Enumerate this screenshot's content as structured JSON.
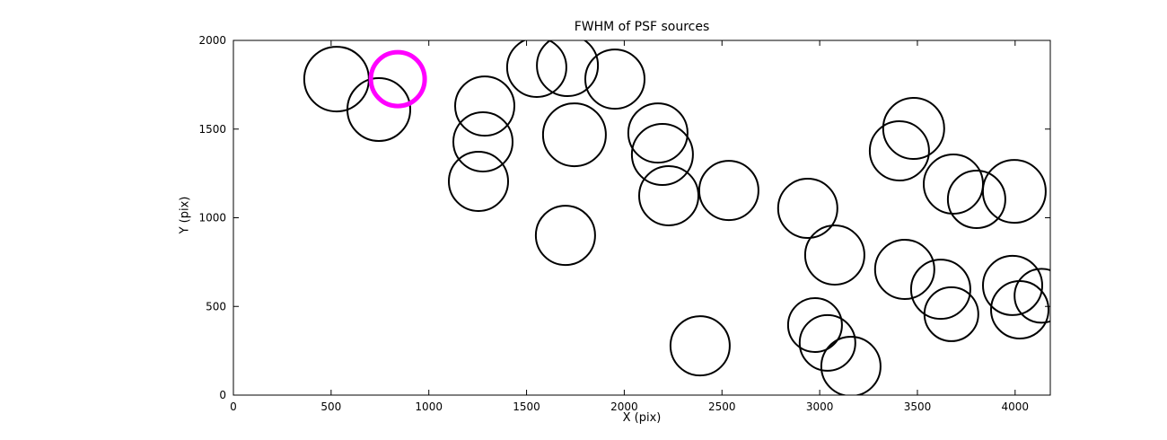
{
  "figure": {
    "title": "FWHM of PSF sources",
    "xlabel": "X (pix)",
    "ylabel": "Y (pix)"
  },
  "chart_data": {
    "type": "scatter",
    "title": "FWHM of PSF sources",
    "xlabel": "X (pix)",
    "ylabel": "Y (pix)",
    "xlim": [
      0,
      4180
    ],
    "ylim": [
      0,
      2000
    ],
    "x_ticks": [
      0,
      500,
      1000,
      1500,
      2000,
      2500,
      3000,
      3500,
      4000
    ],
    "y_ticks": [
      0,
      500,
      1000,
      1500,
      2000
    ],
    "grid": false,
    "legend": "none",
    "marker": "open-circle",
    "colors": {
      "default": "#000000",
      "highlight": "#ff00ff"
    },
    "note": "Each point is a PSF source; r is the drawn marker radius in screen px; one highlighted source in magenta",
    "points": [
      {
        "x": 528,
        "y": 1782,
        "r": 36
      },
      {
        "x": 744,
        "y": 1610,
        "r": 35
      },
      {
        "x": 841,
        "y": 1782,
        "r": 30,
        "color": "highlight",
        "lw": 5
      },
      {
        "x": 1552,
        "y": 1848,
        "r": 33
      },
      {
        "x": 1709,
        "y": 1858,
        "r": 34
      },
      {
        "x": 1952,
        "y": 1782,
        "r": 33
      },
      {
        "x": 1286,
        "y": 1630,
        "r": 33
      },
      {
        "x": 1277,
        "y": 1428,
        "r": 33
      },
      {
        "x": 1254,
        "y": 1205,
        "r": 33
      },
      {
        "x": 1745,
        "y": 1468,
        "r": 35
      },
      {
        "x": 1699,
        "y": 901,
        "r": 33
      },
      {
        "x": 2172,
        "y": 1478,
        "r": 33
      },
      {
        "x": 2195,
        "y": 1357,
        "r": 34
      },
      {
        "x": 2228,
        "y": 1124,
        "r": 33
      },
      {
        "x": 2535,
        "y": 1154,
        "r": 33
      },
      {
        "x": 2939,
        "y": 1053,
        "r": 33
      },
      {
        "x": 3077,
        "y": 790,
        "r": 33
      },
      {
        "x": 2388,
        "y": 278,
        "r": 33
      },
      {
        "x": 2976,
        "y": 395,
        "r": 30
      },
      {
        "x": 3040,
        "y": 294,
        "r": 31
      },
      {
        "x": 3160,
        "y": 162,
        "r": 33
      },
      {
        "x": 3481,
        "y": 1504,
        "r": 34
      },
      {
        "x": 3408,
        "y": 1377,
        "r": 33
      },
      {
        "x": 3684,
        "y": 1190,
        "r": 33
      },
      {
        "x": 3803,
        "y": 1104,
        "r": 32
      },
      {
        "x": 3996,
        "y": 1149,
        "r": 35
      },
      {
        "x": 3435,
        "y": 709,
        "r": 33
      },
      {
        "x": 3619,
        "y": 597,
        "r": 33
      },
      {
        "x": 3987,
        "y": 618,
        "r": 33
      },
      {
        "x": 4024,
        "y": 481,
        "r": 32
      },
      {
        "x": 3674,
        "y": 456,
        "r": 30
      },
      {
        "x": 4135,
        "y": 560,
        "r": 30
      }
    ]
  }
}
